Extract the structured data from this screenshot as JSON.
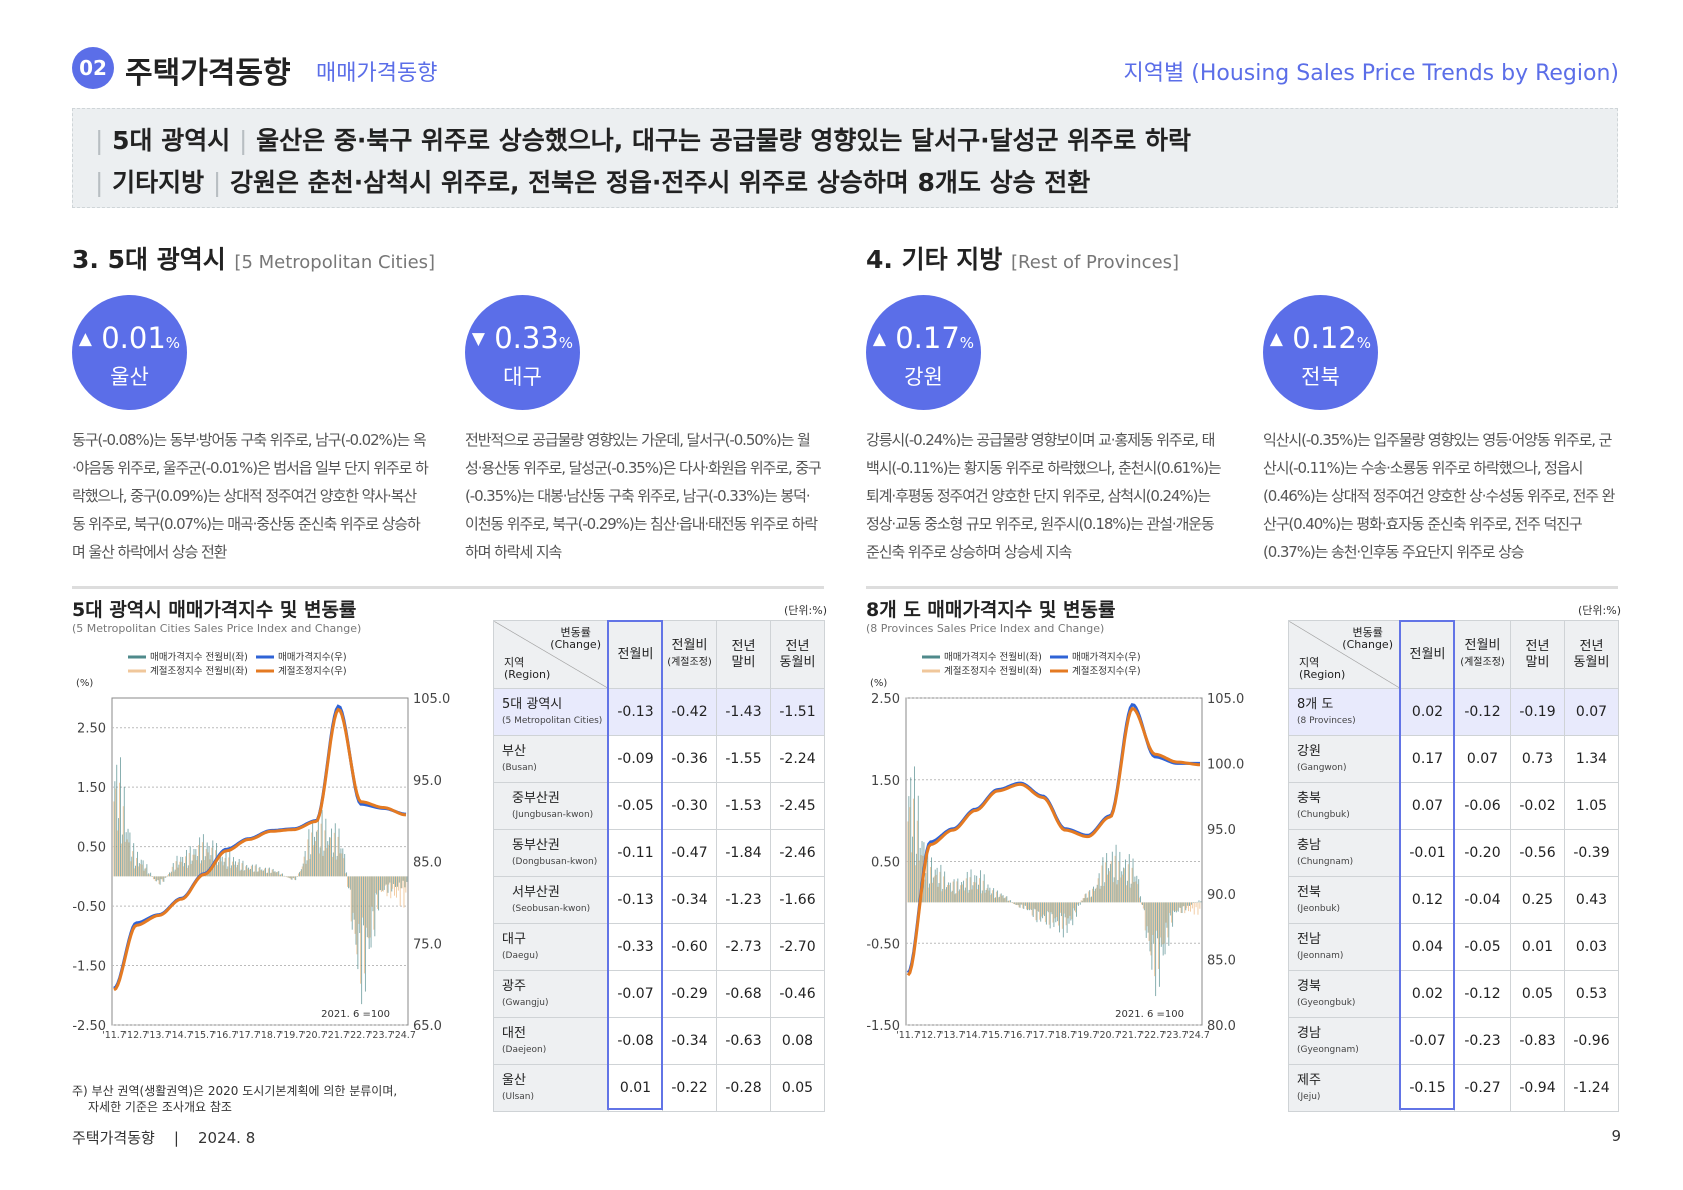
{
  "header": {
    "number": "02",
    "title": "주택가격동향",
    "subtitle": "매매가격동향",
    "right": "지역별 (Housing Sales Price Trends by Region)"
  },
  "summary": {
    "line1": {
      "tag": "5대 광역시",
      "text": "울산은 중·북구 위주로 상승했으나, 대구는 공급물량 영향있는 달서구·달성군 위주로 하락"
    },
    "line2": {
      "tag": "기타지방",
      "text": "강원은 춘천·삼척시 위주로, 전북은 정읍·전주시 위주로 상승하며 8개도 상승 전환"
    }
  },
  "metro": {
    "heading": "3. 5대 광역시",
    "heading_en": "[5 Metropolitan Cities]",
    "cards": [
      {
        "arrow": "▲",
        "value": "0.01",
        "unit": "%",
        "region": "울산",
        "text": "동구(-0.08%)는 동부·방어동 구축 위주로, 남구(-0.02%)는 옥·야음동 위주로, 울주군(-0.01%)은 범서읍 일부 단지 위주로 하락했으나, 중구(0.09%)는 상대적 정주여건 양호한 약사·복산동 위주로, 북구(0.07%)는 매곡·중산동 준신축 위주로 상승하며 울산 하락에서 상승 전환"
      },
      {
        "arrow": "▼",
        "value": "0.33",
        "unit": "%",
        "region": "대구",
        "text": "전반적으로 공급물량 영향있는 가운데, 달서구(-0.50%)는 월성·용산동 위주로, 달성군(-0.35%)은 다사·화원읍 위주로, 중구(-0.35%)는 대봉·남산동 구축 위주로, 남구(-0.33%)는 봉덕·이천동 위주로, 북구(-0.29%)는 침산·읍내·태전동 위주로 하락하며 하락세 지속"
      }
    ],
    "chart_title": "5대 광역시 매매가격지수 및 변동률",
    "chart_sub": "(5 Metropolitan Cities Sales Price Index and Change)",
    "unit": "(단위:%)",
    "note1": "주) 부산 권역(생활권역)은 2020 도시기본계획에 의한 분류이며,",
    "note2": "자세한 기준은 조사개요 참조",
    "table": {
      "rows": [
        {
          "ko": "5대 광역시",
          "en": "(5 Metropolitan Cities)",
          "v": [
            "-0.13",
            "-0.42",
            "-1.43",
            "-1.51"
          ]
        },
        {
          "ko": "부산",
          "en": "(Busan)",
          "v": [
            "-0.09",
            "-0.36",
            "-1.55",
            "-2.24"
          ]
        },
        {
          "ko": "중부산권",
          "en": "(Jungbusan-kwon)",
          "v": [
            "-0.05",
            "-0.30",
            "-1.53",
            "-2.45"
          ]
        },
        {
          "ko": "동부산권",
          "en": "(Dongbusan-kwon)",
          "v": [
            "-0.11",
            "-0.47",
            "-1.84",
            "-2.46"
          ]
        },
        {
          "ko": "서부산권",
          "en": "(Seobusan-kwon)",
          "v": [
            "-0.13",
            "-0.34",
            "-1.23",
            "-1.66"
          ]
        },
        {
          "ko": "대구",
          "en": "(Daegu)",
          "v": [
            "-0.33",
            "-0.60",
            "-2.73",
            "-2.70"
          ]
        },
        {
          "ko": "광주",
          "en": "(Gwangju)",
          "v": [
            "-0.07",
            "-0.29",
            "-0.68",
            "-0.46"
          ]
        },
        {
          "ko": "대전",
          "en": "(Daejeon)",
          "v": [
            "-0.08",
            "-0.34",
            "-0.63",
            "0.08"
          ]
        },
        {
          "ko": "울산",
          "en": "(Ulsan)",
          "v": [
            "0.01",
            "-0.22",
            "-0.28",
            "0.05"
          ]
        }
      ]
    }
  },
  "provinces": {
    "heading": "4. 기타 지방",
    "heading_en": "[Rest of Provinces]",
    "cards": [
      {
        "arrow": "▲",
        "value": "0.17",
        "unit": "%",
        "region": "강원",
        "text": "강릉시(-0.24%)는 공급물량 영향보이며 교·홍제동 위주로, 태백시(-0.11%)는 황지동 위주로 하락했으나, 춘천시(0.61%)는 퇴계·후평동 정주여건 양호한 단지 위주로, 삼척시(0.24%)는 정상·교동 중소형 규모 위주로, 원주시(0.18%)는 관설·개운동 준신축 위주로 상승하며 상승세 지속"
      },
      {
        "arrow": "▲",
        "value": "0.12",
        "unit": "%",
        "region": "전북",
        "text": "익산시(-0.35%)는 입주물량 영향있는 영등·어양동 위주로, 군산시(-0.11%)는 수송·소룡동 위주로 하락했으나, 정읍시(0.46%)는 상대적 정주여건 양호한 상·수성동 위주로, 전주 완산구(0.40%)는 평화·효자동 준신축 위주로, 전주 덕진구(0.37%)는 송천·인후동 주요단지 위주로 상승"
      }
    ],
    "chart_title": "8개 도 매매가격지수 및 변동률",
    "chart_sub": "(8 Provinces Sales Price Index and Change)",
    "unit": "(단위:%)",
    "table": {
      "rows": [
        {
          "ko": "8개 도",
          "en": "(8 Provinces)",
          "v": [
            "0.02",
            "-0.12",
            "-0.19",
            "0.07"
          ]
        },
        {
          "ko": "강원",
          "en": "(Gangwon)",
          "v": [
            "0.17",
            "0.07",
            "0.73",
            "1.34"
          ]
        },
        {
          "ko": "충북",
          "en": "(Chungbuk)",
          "v": [
            "0.07",
            "-0.06",
            "-0.02",
            "1.05"
          ]
        },
        {
          "ko": "충남",
          "en": "(Chungnam)",
          "v": [
            "-0.01",
            "-0.20",
            "-0.56",
            "-0.39"
          ]
        },
        {
          "ko": "전북",
          "en": "(Jeonbuk)",
          "v": [
            "0.12",
            "-0.04",
            "0.25",
            "0.43"
          ]
        },
        {
          "ko": "전남",
          "en": "(Jeonnam)",
          "v": [
            "0.04",
            "-0.05",
            "0.01",
            "0.03"
          ]
        },
        {
          "ko": "경북",
          "en": "(Gyeongbuk)",
          "v": [
            "0.02",
            "-0.12",
            "0.05",
            "0.53"
          ]
        },
        {
          "ko": "경남",
          "en": "(Gyeongnam)",
          "v": [
            "-0.07",
            "-0.23",
            "-0.83",
            "-0.96"
          ]
        },
        {
          "ko": "제주",
          "en": "(Jeju)",
          "v": [
            "-0.15",
            "-0.27",
            "-0.94",
            "-1.24"
          ]
        }
      ]
    }
  },
  "table_head": {
    "corner_change": "변동률",
    "corner_change_en": "(Change)",
    "corner_region": "지역",
    "corner_region_en": "(Region)",
    "c1": "전월비",
    "c2": "전월비",
    "c2_sub": "(계절조정)",
    "c3a": "전년",
    "c3b": "말비",
    "c4a": "전년",
    "c4b": "동월비"
  },
  "chart_data": [
    {
      "type": "line",
      "title": "5대 광역시 매매가격지수 및 변동률",
      "subtitle": "(5 Metropolitan Cities Sales Price Index and Change)",
      "xlabel": "",
      "ylabel": "(%)",
      "categories": [
        "'11.7",
        "'12.7",
        "'13.7",
        "'14.7",
        "'15.7",
        "'16.7",
        "'17.7",
        "'18.7",
        "'19.7",
        "'20.7",
        "'21.7",
        "'22.7",
        "'23.7",
        "'24.7"
      ],
      "left_axis": {
        "ticks": [
          "2.50",
          "1.50",
          "0.50",
          "-0.50",
          "-1.50",
          "-2.50"
        ],
        "range": [
          -2.5,
          3.0
        ]
      },
      "right_axis": {
        "ticks": [
          "105.0",
          "95.0",
          "85.0",
          "75.0",
          "65.0"
        ],
        "range": [
          65,
          105
        ]
      },
      "base_note": "2021. 6 =100",
      "legend": [
        "매매가격지수 전월비(좌)",
        "매매가격지수(우)",
        "계절조정지수 전월비(좌)",
        "계절조정지수(우)"
      ],
      "colors": {
        "index": "#2f63d6",
        "sa_index": "#e47a22",
        "mom": "#4f8a8b",
        "sa_mom": "#f0c79b"
      },
      "series": [
        {
          "name": "매매가격지수(우)",
          "values": [
            69.5,
            77.5,
            78.5,
            80.5,
            83.5,
            86.5,
            87.8,
            88.8,
            89.0,
            90.0,
            104.0,
            92.0,
            91.5,
            90.8
          ]
        },
        {
          "name": "계절조정지수(우)",
          "values": [
            69.3,
            77.2,
            78.4,
            80.4,
            83.4,
            86.3,
            87.7,
            88.7,
            88.9,
            89.9,
            103.6,
            92.3,
            91.6,
            90.7
          ]
        },
        {
          "name": "매매가격지수 전월비(좌)",
          "values": [
            1.6,
            0.3,
            -0.1,
            0.3,
            0.5,
            0.3,
            0.15,
            0.1,
            -0.05,
            0.8,
            0.6,
            -1.5,
            -0.2,
            -0.13
          ]
        },
        {
          "name": "계절조정지수 전월비(좌)",
          "values": [
            1.4,
            0.25,
            -0.1,
            0.25,
            0.45,
            0.25,
            0.15,
            0.1,
            -0.05,
            0.7,
            0.55,
            -1.4,
            -0.25,
            -0.42
          ]
        }
      ]
    },
    {
      "type": "line",
      "title": "8개 도 매매가격지수 및 변동률",
      "subtitle": "(8 Provinces Sales Price Index and Change)",
      "xlabel": "",
      "ylabel": "(%)",
      "categories": [
        "'11.7",
        "'12.7",
        "'13.7",
        "'14.7",
        "'15.7",
        "'16.7",
        "'17.7",
        "'18.7",
        "'19.7",
        "'20.7",
        "'21.7",
        "'22.7",
        "'23.7",
        "'24.7"
      ],
      "left_axis": {
        "ticks": [
          "2.50",
          "1.50",
          "0.50",
          "-0.50",
          "-1.50"
        ],
        "range": [
          -1.5,
          2.5
        ]
      },
      "right_axis": {
        "ticks": [
          "105.0",
          "100.0",
          "95.0",
          "90.0",
          "85.0",
          "80.0"
        ],
        "range": [
          80,
          105
        ]
      },
      "base_note": "2021. 6 =100",
      "legend": [
        "매매가격지수 전월비(좌)",
        "매매가격지수(우)",
        "계절조정지수 전월비(좌)",
        "계절조정지수(우)"
      ],
      "colors": {
        "index": "#2f63d6",
        "sa_index": "#e47a22",
        "mom": "#4f8a8b",
        "sa_mom": "#f0c79b"
      },
      "series": [
        {
          "name": "매매가격지수(우)",
          "values": [
            84.0,
            94.0,
            95.0,
            96.5,
            98.0,
            98.5,
            97.5,
            95.0,
            94.5,
            96.0,
            104.5,
            100.5,
            100.0,
            100.0
          ]
        },
        {
          "name": "계절조정지수(우)",
          "values": [
            83.8,
            93.8,
            94.9,
            96.4,
            97.9,
            98.4,
            97.4,
            94.9,
            94.4,
            95.9,
            104.2,
            100.7,
            100.1,
            99.9
          ]
        },
        {
          "name": "매매가격지수 전월비(좌)",
          "values": [
            1.3,
            0.4,
            0.2,
            0.3,
            0.1,
            -0.05,
            -0.2,
            -0.3,
            0.1,
            0.5,
            0.4,
            -0.8,
            -0.1,
            0.02
          ]
        },
        {
          "name": "계절조정지수 전월비(좌)",
          "values": [
            1.1,
            0.35,
            0.2,
            0.25,
            0.1,
            -0.05,
            -0.2,
            -0.25,
            0.1,
            0.45,
            0.35,
            -0.7,
            -0.1,
            -0.12
          ]
        }
      ]
    }
  ],
  "footer": {
    "left": "주택가격동향    |    2024. 8",
    "page": "9"
  }
}
